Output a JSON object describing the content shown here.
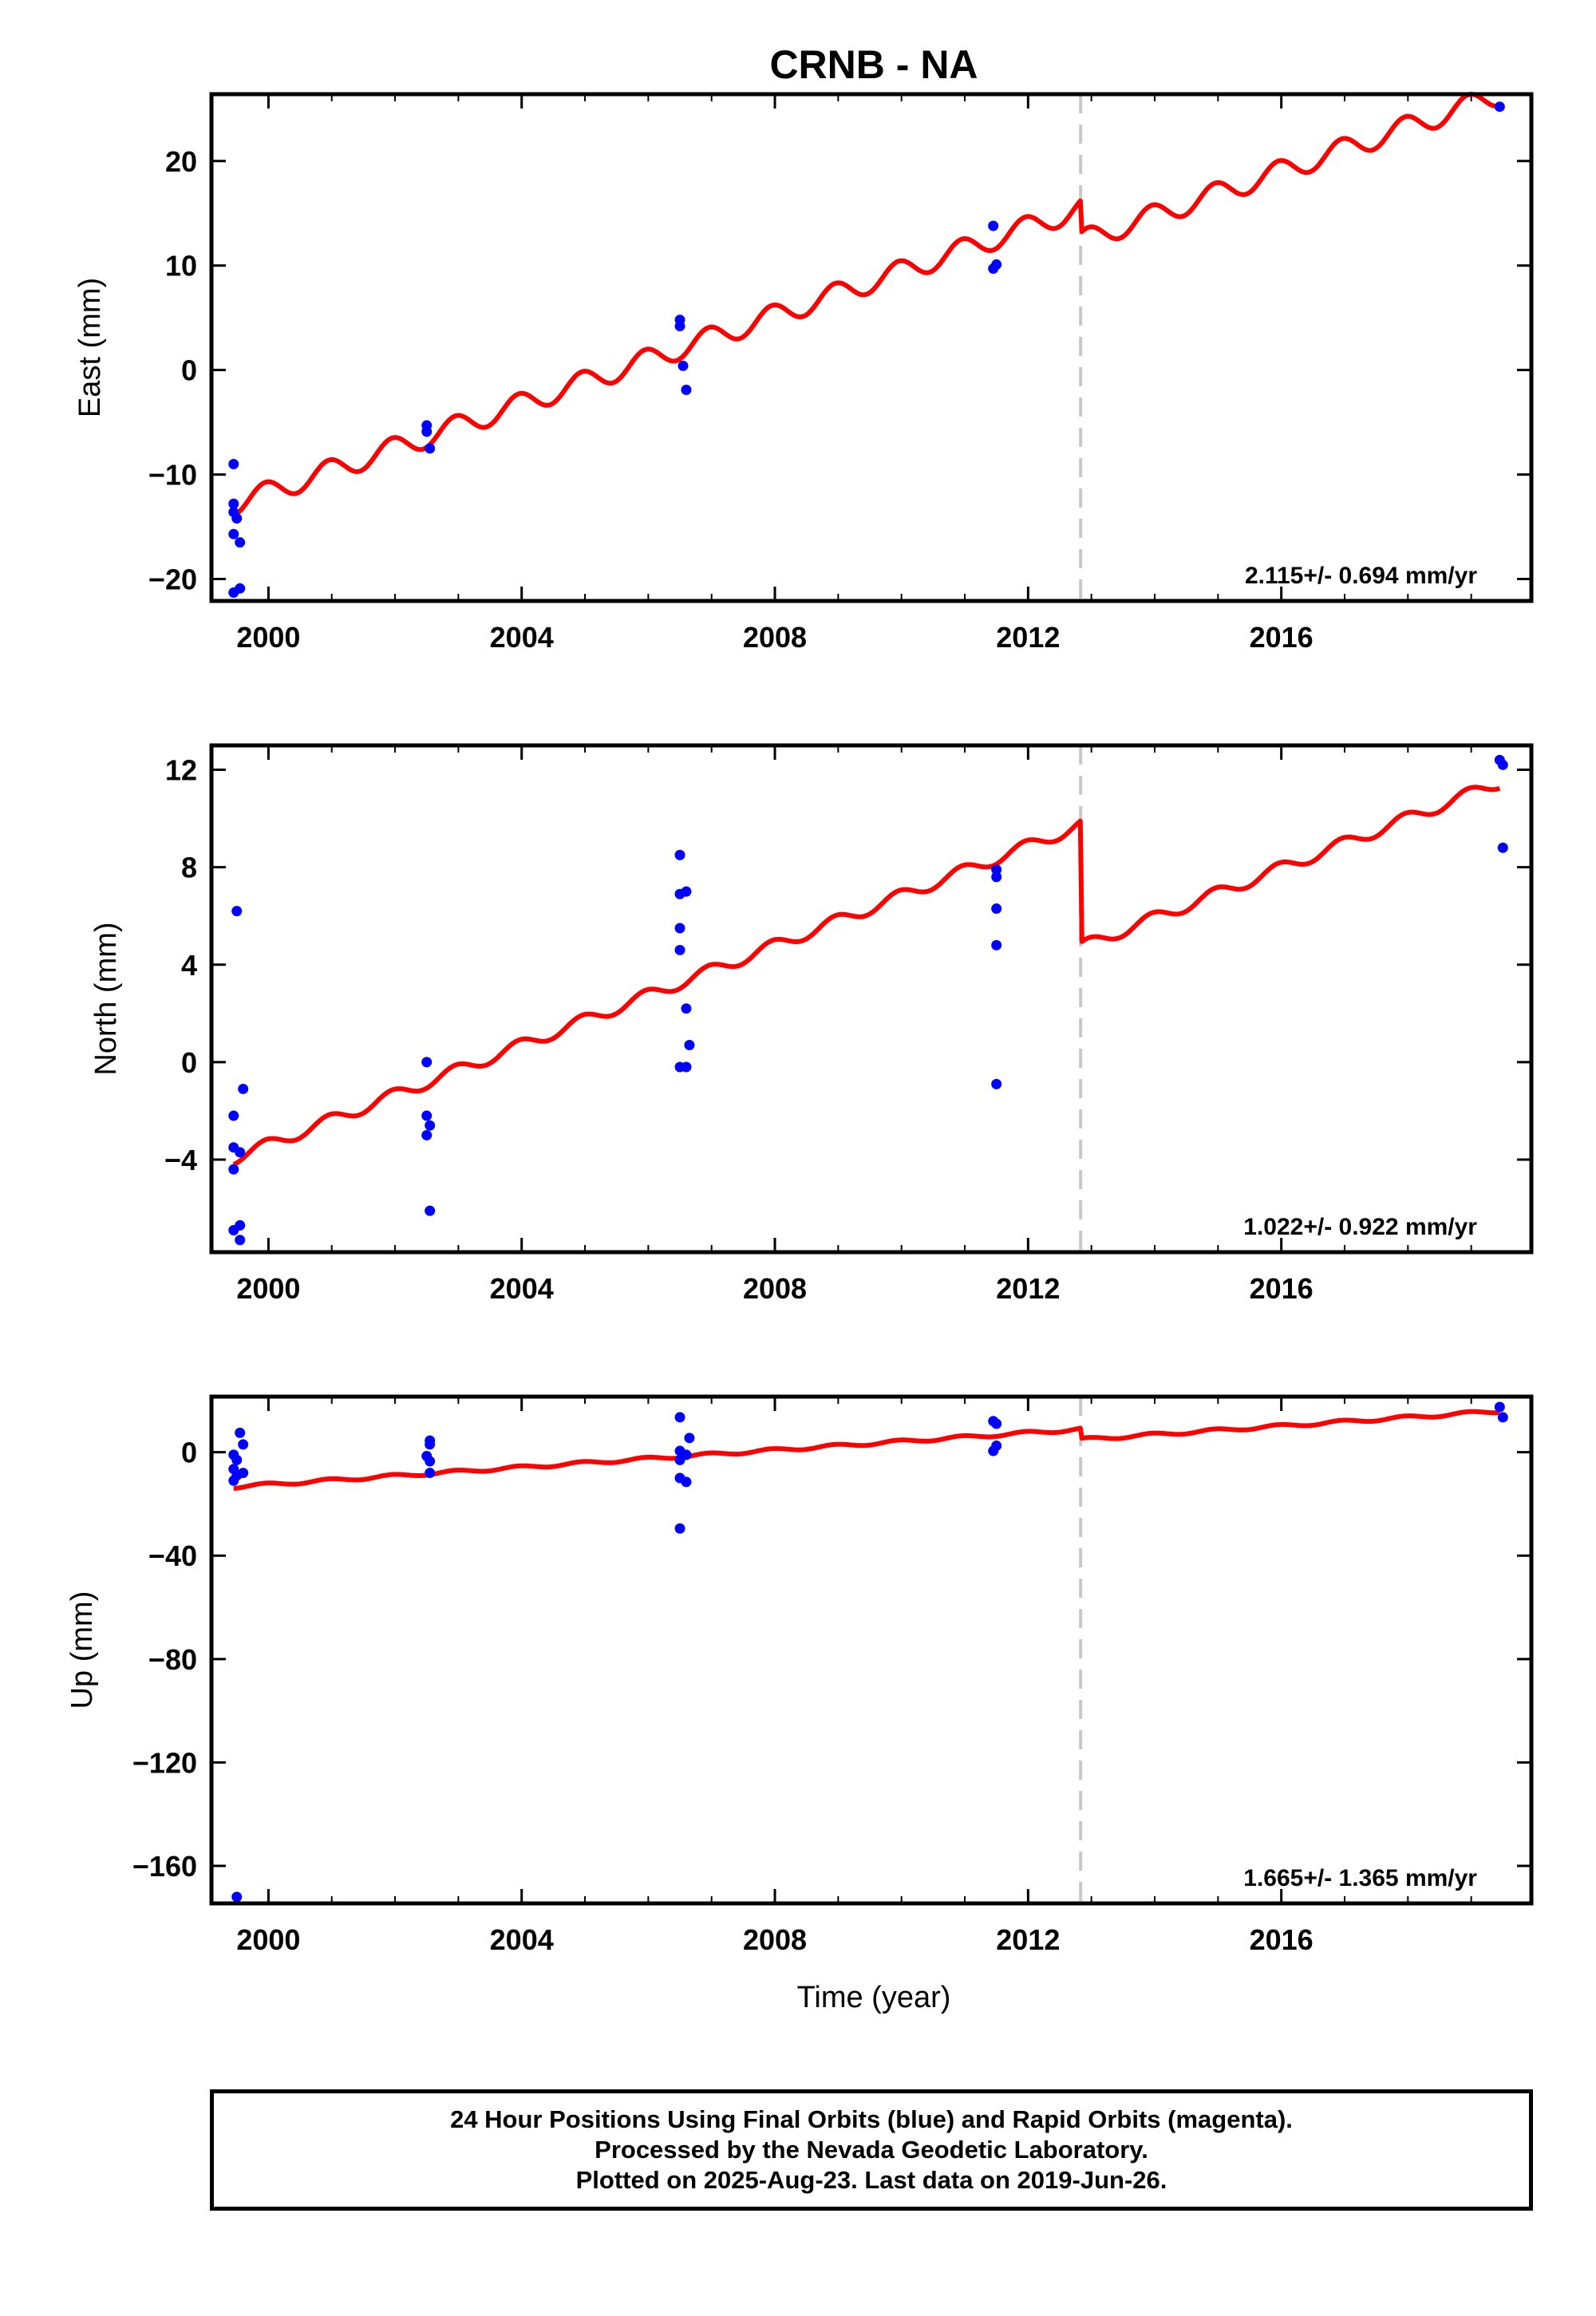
{
  "title": "CRNB - NA",
  "colors": {
    "model": "#ff0000",
    "data": "#0000ff",
    "event": "#c8c8c8",
    "axes": "#000000"
  },
  "xlabel": "Time (year)",
  "footer": {
    "line1": "24 Hour Positions Using Final Orbits (blue) and Rapid Orbits (magenta).",
    "line2": "Processed by the Nevada Geodetic Laboratory.",
    "line3": "Plotted on 2025-Aug-23. Last data on 2019-Jun-26."
  },
  "chart_data": [
    {
      "type": "scatter",
      "component": "East",
      "ylabel": "East (mm)",
      "xlim": [
        1999.1,
        2019.95
      ],
      "ylim": [
        -22.1,
        26.4
      ],
      "xticks": [
        2000,
        2004,
        2008,
        2012,
        2016
      ],
      "yticks": [
        -20,
        -10,
        0,
        10,
        20
      ],
      "rate_text": "2.115+/- 0.694 mm/yr",
      "event_x": 2012.83,
      "points": [
        [
          1999.45,
          -9.0
        ],
        [
          1999.45,
          -12.8
        ],
        [
          1999.45,
          -13.6
        ],
        [
          1999.45,
          -15.7
        ],
        [
          1999.5,
          -14.2
        ],
        [
          1999.55,
          -16.5
        ],
        [
          1999.45,
          -21.3
        ],
        [
          1999.55,
          -20.9
        ],
        [
          2002.5,
          -5.3
        ],
        [
          2002.5,
          -5.9
        ],
        [
          2002.55,
          -7.5
        ],
        [
          2006.5,
          4.8
        ],
        [
          2006.5,
          4.2
        ],
        [
          2006.55,
          0.4
        ],
        [
          2006.6,
          -1.9
        ],
        [
          2011.45,
          13.8
        ],
        [
          2011.45,
          9.7
        ],
        [
          2011.5,
          10.1
        ],
        [
          2019.45,
          25.2
        ]
      ],
      "model": {
        "t0": 1999.45,
        "t1": 2019.45,
        "v0": -13.9,
        "rate": 2.115,
        "event_x": 2012.83,
        "step": -3.1,
        "amplitude": 1.05
      }
    },
    {
      "type": "scatter",
      "component": "North",
      "ylabel": "North (mm)",
      "xlim": [
        1999.1,
        2019.95
      ],
      "ylim": [
        -7.8,
        13.0
      ],
      "xticks": [
        2000,
        2004,
        2008,
        2012,
        2016
      ],
      "yticks": [
        -4,
        0,
        4,
        8,
        12
      ],
      "rate_text": "1.022+/- 0.922 mm/yr",
      "event_x": 2012.83,
      "points": [
        [
          1999.5,
          6.2
        ],
        [
          1999.45,
          -2.2
        ],
        [
          1999.45,
          -3.5
        ],
        [
          1999.55,
          -3.7
        ],
        [
          1999.45,
          -4.4
        ],
        [
          1999.6,
          -1.1
        ],
        [
          1999.45,
          -6.9
        ],
        [
          1999.55,
          -6.7
        ],
        [
          1999.55,
          -7.3
        ],
        [
          2002.5,
          0.0
        ],
        [
          2002.5,
          -2.2
        ],
        [
          2002.55,
          -2.6
        ],
        [
          2002.5,
          -3.0
        ],
        [
          2002.55,
          -6.1
        ],
        [
          2006.5,
          8.5
        ],
        [
          2006.5,
          6.9
        ],
        [
          2006.6,
          7.0
        ],
        [
          2006.5,
          5.5
        ],
        [
          2006.5,
          4.6
        ],
        [
          2006.6,
          2.2
        ],
        [
          2006.65,
          0.7
        ],
        [
          2006.5,
          -0.2
        ],
        [
          2006.6,
          -0.2
        ],
        [
          2011.5,
          7.9
        ],
        [
          2011.5,
          7.6
        ],
        [
          2011.5,
          6.3
        ],
        [
          2011.5,
          4.8
        ],
        [
          2011.5,
          -0.9
        ],
        [
          2019.45,
          12.4
        ],
        [
          2019.5,
          12.2
        ],
        [
          2019.5,
          8.8
        ]
      ],
      "model": {
        "t0": 1999.45,
        "t1": 2019.45,
        "v0": -4.2,
        "rate": 1.022,
        "event_x": 2012.83,
        "step": -5.0,
        "amplitude": 0.25
      }
    },
    {
      "type": "scatter",
      "component": "Up",
      "ylabel": "Up (mm)",
      "xlim": [
        1999.1,
        2019.95
      ],
      "ylim": [
        -174.5,
        21.5
      ],
      "xticks": [
        2000,
        2004,
        2008,
        2012,
        2016
      ],
      "yticks": [
        -160,
        -120,
        -80,
        -40,
        0
      ],
      "rate_text": "1.665+/- 1.365 mm/yr",
      "event_x": 2012.83,
      "points": [
        [
          1999.55,
          7.5
        ],
        [
          1999.6,
          3.0
        ],
        [
          1999.45,
          -1.0
        ],
        [
          1999.5,
          -3.0
        ],
        [
          1999.45,
          -6.5
        ],
        [
          1999.5,
          -9.0
        ],
        [
          1999.45,
          -11.0
        ],
        [
          1999.6,
          -8.0
        ],
        [
          1999.5,
          -172.0
        ],
        [
          2002.55,
          4.5
        ],
        [
          2002.55,
          3.0
        ],
        [
          2002.5,
          -1.5
        ],
        [
          2002.55,
          -3.5
        ],
        [
          2002.55,
          -8.0
        ],
        [
          2006.5,
          13.5
        ],
        [
          2006.65,
          5.5
        ],
        [
          2006.5,
          0.5
        ],
        [
          2006.6,
          -1.0
        ],
        [
          2006.5,
          -3.0
        ],
        [
          2006.5,
          -10.0
        ],
        [
          2006.6,
          -11.5
        ],
        [
          2006.5,
          -29.5
        ],
        [
          2011.45,
          12.0
        ],
        [
          2011.5,
          11.0
        ],
        [
          2011.5,
          2.5
        ],
        [
          2011.45,
          0.5
        ],
        [
          2019.45,
          17.5
        ],
        [
          2019.5,
          13.5
        ]
      ],
      "model": {
        "t0": 1999.45,
        "t1": 2019.45,
        "v0": -14.0,
        "rate": 1.665,
        "event_x": 2012.83,
        "step": -4.0,
        "amplitude": 0.6
      }
    }
  ]
}
